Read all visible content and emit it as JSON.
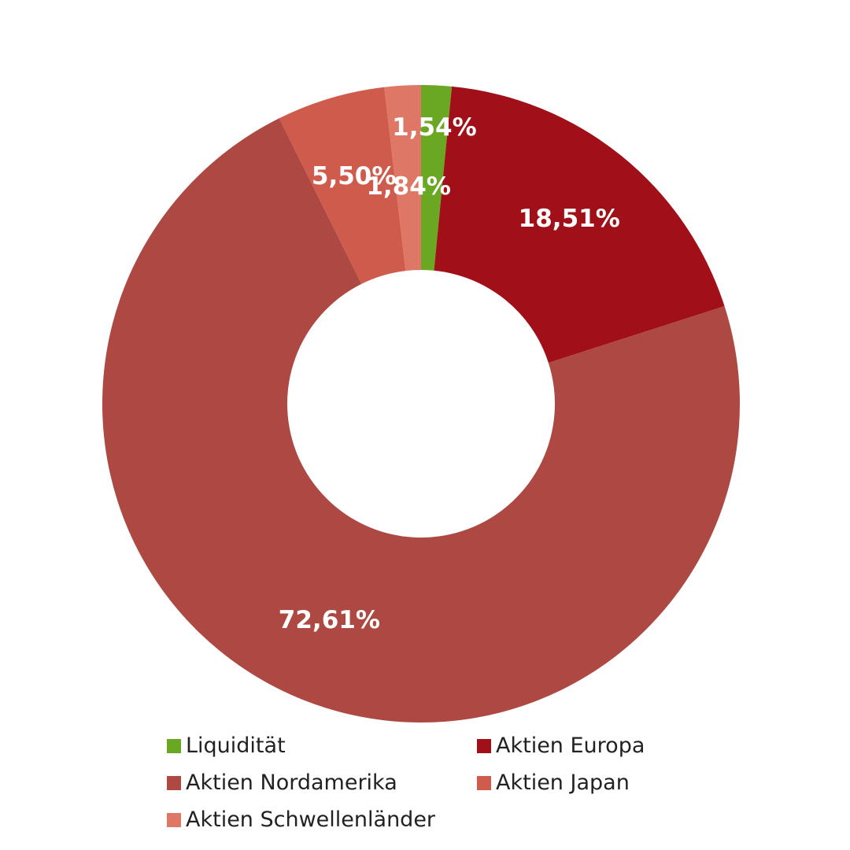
{
  "chart_data": {
    "type": "pie",
    "donut": true,
    "slices": [
      {
        "name": "Liquidität",
        "value": 1.54,
        "label": "1,54%",
        "color": "#6aa723"
      },
      {
        "name": "Aktien Europa",
        "value": 18.51,
        "label": "18,51%",
        "color": "#a11018"
      },
      {
        "name": "Aktien Nordamerika",
        "value": 72.61,
        "label": "72,61%",
        "color": "#ad4842"
      },
      {
        "name": "Aktien Japan",
        "value": 5.5,
        "label": "5,50%",
        "color": "#cf5b4d"
      },
      {
        "name": "Aktien Schwellenländer",
        "value": 1.84,
        "label": "1,84%",
        "color": "#de7766"
      }
    ],
    "legend_position": "bottom"
  }
}
